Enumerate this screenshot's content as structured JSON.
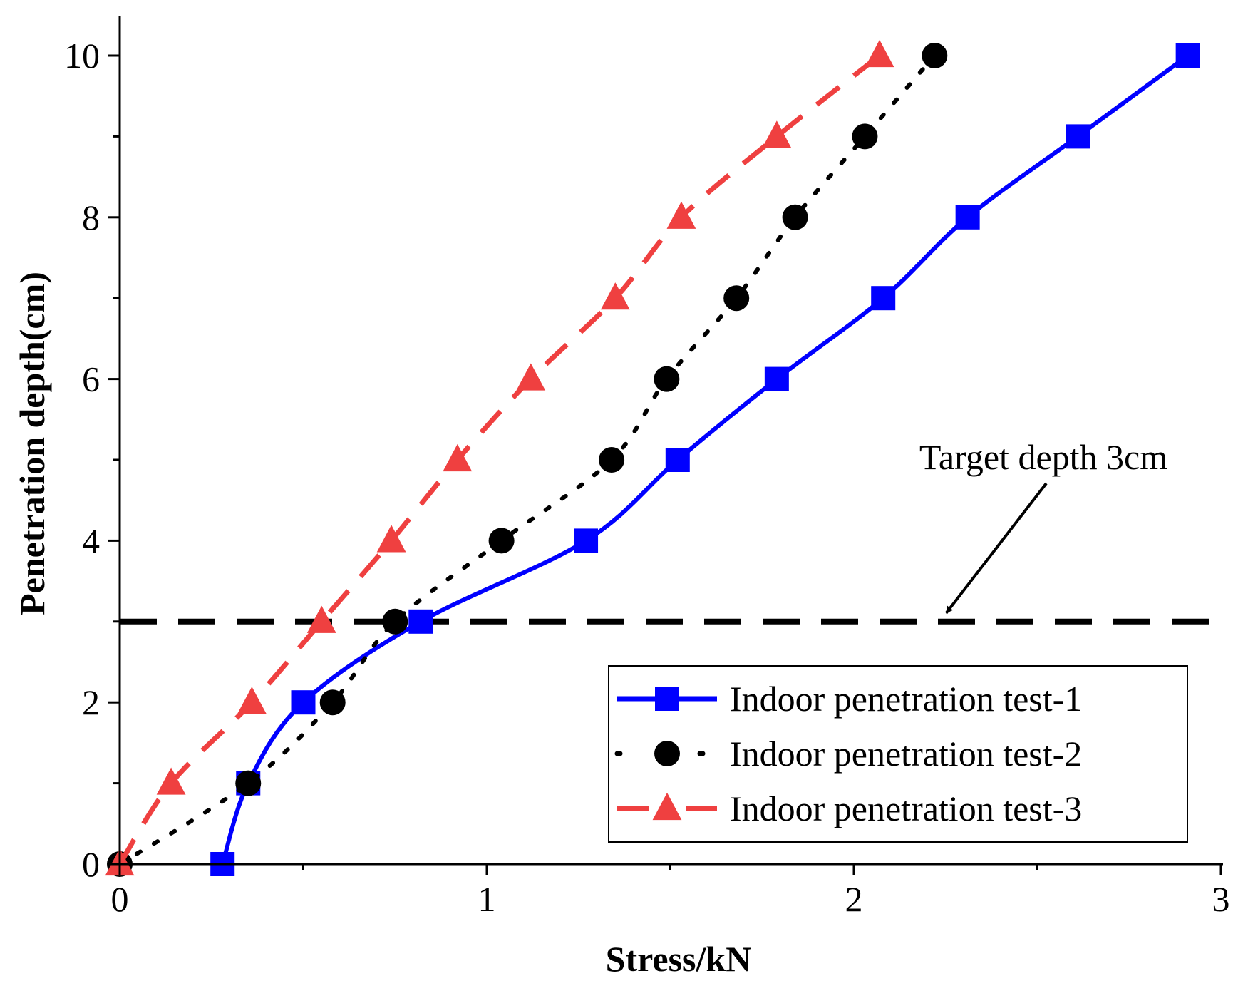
{
  "chart_data": {
    "type": "line",
    "title": "",
    "xlabel": "Stress/kN",
    "ylabel": "Penetration depth(cm)",
    "xlim": [
      0,
      3
    ],
    "ylim": [
      0,
      10.5
    ],
    "xticks": [
      "0",
      "1",
      "2",
      "3"
    ],
    "yticks": [
      "0",
      "2",
      "4",
      "6",
      "8",
      "10"
    ],
    "grid": false,
    "legend_position": "bottom-right",
    "series": [
      {
        "name": "Indoor penetration test-1",
        "color": "#0000ff",
        "line_style": "solid",
        "marker": "square",
        "x": [
          0.28,
          0.35,
          0.5,
          0.82,
          1.27,
          1.52,
          1.79,
          2.08,
          2.31,
          2.61,
          2.91
        ],
        "y": [
          0,
          1,
          2,
          3,
          4,
          5,
          6,
          7,
          8,
          9,
          10
        ]
      },
      {
        "name": "Indoor penetration test-2",
        "color": "#000000",
        "line_style": "dotted",
        "marker": "circle",
        "x": [
          0.0,
          0.35,
          0.58,
          0.75,
          1.04,
          1.34,
          1.49,
          1.68,
          1.84,
          2.03,
          2.22
        ],
        "y": [
          0,
          1,
          2,
          3,
          4,
          5,
          6,
          7,
          8,
          9,
          10
        ]
      },
      {
        "name": "Indoor penetration test-3",
        "color": "#ef4040",
        "line_style": "dashed",
        "marker": "triangle",
        "x": [
          0.0,
          0.14,
          0.36,
          0.55,
          0.74,
          0.92,
          1.12,
          1.35,
          1.53,
          1.79,
          2.07
        ],
        "y": [
          0,
          1,
          2,
          3,
          4,
          5,
          6,
          7,
          8,
          9,
          10
        ]
      }
    ],
    "reference_line": {
      "y": 3,
      "color": "#000000",
      "line_style": "dashed"
    },
    "annotation": {
      "text": "Target depth 3cm",
      "points_to": {
        "x": 2.24,
        "y": 3
      }
    }
  }
}
